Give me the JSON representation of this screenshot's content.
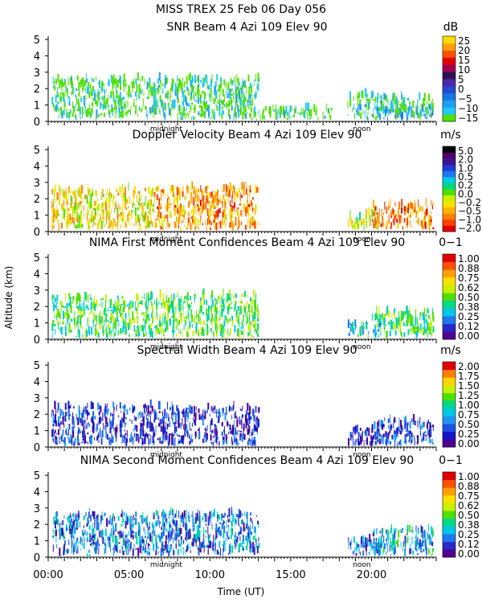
{
  "figure": {
    "title_line1": "MISS TREX  25 Feb 06 Day 056",
    "ylabel": "Altitude (km)",
    "xlabel": "Time (UT)",
    "x_ticks": [
      {
        "value": 0,
        "label": "00:00"
      },
      {
        "value": 5,
        "label": "05:00"
      },
      {
        "value": 10,
        "label": "10:00"
      },
      {
        "value": 15,
        "label": "15:00"
      },
      {
        "value": 20,
        "label": "20:00"
      }
    ],
    "marker_labels": {
      "midnight": "midnight",
      "noon": "noon"
    },
    "y_ticks": [
      0,
      1,
      2,
      3,
      4,
      5
    ]
  },
  "chart_data": [
    {
      "type": "heatmap",
      "title": "SNR Beam 4 Azi 109 Elev 90",
      "unit": "dB",
      "xlim": [
        0,
        24
      ],
      "ylim": [
        0,
        5.2
      ],
      "colorbar_ticks": [
        "25",
        "20",
        "15",
        "10",
        "5",
        "0",
        "−5",
        "−10",
        "−15"
      ],
      "colormap": [
        "#50e000",
        "#22c8ff",
        "#1ea0f0",
        "#1478dc",
        "#2846d2",
        "#4a2aa8",
        "#301050",
        "#a00050",
        "#e00000",
        "#ff5000",
        "#ffa000",
        "#ffdc00"
      ],
      "regions": [
        {
          "x": [
            0.2,
            6.5
          ],
          "y": [
            0.05,
            2.5
          ],
          "level": 0.03
        },
        {
          "x": [
            6.5,
            13.0
          ],
          "y": [
            0.05,
            2.5
          ],
          "level": 0.05
        },
        {
          "x": [
            12.5,
            17.5
          ],
          "y": [
            0.05,
            0.7
          ],
          "level": 0.02
        },
        {
          "x": [
            18.5,
            20.5
          ],
          "y": [
            0.05,
            1.6
          ],
          "level": 0.05
        },
        {
          "x": [
            20.0,
            23.8
          ],
          "y": [
            0.05,
            0.8
          ],
          "level": 0.18
        },
        {
          "x": [
            20.5,
            23.8
          ],
          "y": [
            0.3,
            1.4
          ],
          "level": 0.08
        }
      ]
    },
    {
      "type": "heatmap",
      "title": "Doppler Velocity Beam 4 Azi 109 Elev 90",
      "unit": "m/s",
      "xlim": [
        0,
        24
      ],
      "ylim": [
        0,
        5.2
      ],
      "colorbar_ticks": [
        "5.0",
        "2.0",
        "1.0",
        "0.5",
        "0.2",
        "0.0",
        "−0.2",
        "−0.5",
        "−1.0",
        "−2.0"
      ],
      "colormap": [
        "#e00000",
        "#ff4000",
        "#ff8000",
        "#ffb400",
        "#ffe000",
        "#c8f000",
        "#50e000",
        "#00d880",
        "#00c8e6",
        "#1e78f0",
        "#1e3cd2",
        "#3c1490",
        "#500070",
        "#000000"
      ],
      "regions": [
        {
          "x": [
            0.2,
            6.5
          ],
          "y": [
            0.05,
            2.5
          ],
          "level": 0.32
        },
        {
          "x": [
            6.5,
            13.0
          ],
          "y": [
            0.05,
            2.6
          ],
          "level": 0.22
        },
        {
          "x": [
            18.5,
            20.5
          ],
          "y": [
            0.05,
            1.0
          ],
          "level": 0.35
        },
        {
          "x": [
            20.0,
            23.8
          ],
          "y": [
            0.05,
            1.6
          ],
          "level": 0.18
        }
      ]
    },
    {
      "type": "heatmap",
      "title": "NIMA First Moment Confidences Beam 4 Azi 109 Elev 90",
      "unit": "0−1",
      "xlim": [
        0,
        24
      ],
      "ylim": [
        0,
        5.2
      ],
      "colorbar_ticks": [
        "1.00",
        "0.88",
        "0.75",
        "0.62",
        "0.50",
        "0.38",
        "0.25",
        "0.12",
        "0.00"
      ],
      "colormap": [
        "#500090",
        "#2828c8",
        "#1e78f0",
        "#00c8e6",
        "#00d88c",
        "#50e000",
        "#c8f000",
        "#ffe000",
        "#ffa000",
        "#ff5000",
        "#e00000"
      ],
      "regions": [
        {
          "x": [
            0.2,
            6.5
          ],
          "y": [
            0.05,
            2.5
          ],
          "level": 0.45
        },
        {
          "x": [
            6.5,
            13.0
          ],
          "y": [
            0.05,
            2.6
          ],
          "level": 0.48
        },
        {
          "x": [
            18.5,
            20.5
          ],
          "y": [
            0.05,
            1.0
          ],
          "level": 0.3
        },
        {
          "x": [
            20.0,
            23.8
          ],
          "y": [
            0.05,
            1.6
          ],
          "level": 0.45
        }
      ]
    },
    {
      "type": "heatmap",
      "title": "Spectral Width Beam 4 Azi 109 Elev 90",
      "unit": "m/s",
      "xlim": [
        0,
        24
      ],
      "ylim": [
        0,
        5.2
      ],
      "colorbar_ticks": [
        "2.00",
        "1.75",
        "1.50",
        "1.25",
        "1.00",
        "0.75",
        "0.50",
        "0.25",
        "0.00"
      ],
      "colormap": [
        "#500090",
        "#1414c8",
        "#1e50e6",
        "#1e96f0",
        "#00c8e6",
        "#00d88c",
        "#50e000",
        "#c8f000",
        "#ffd200",
        "#ff8000",
        "#e00000"
      ],
      "regions": [
        {
          "x": [
            0.2,
            6.5
          ],
          "y": [
            0.05,
            2.4
          ],
          "level": 0.18
        },
        {
          "x": [
            6.5,
            13.0
          ],
          "y": [
            0.05,
            2.3
          ],
          "level": 0.16
        },
        {
          "x": [
            18.5,
            20.5
          ],
          "y": [
            0.05,
            1.0
          ],
          "level": 0.12
        },
        {
          "x": [
            20.0,
            23.8
          ],
          "y": [
            0.05,
            1.6
          ],
          "level": 0.2
        }
      ]
    },
    {
      "type": "heatmap",
      "title": "NIMA Second Moment Confidences Beam 4 Azi 109 Elev 90",
      "unit": "0−1",
      "xlim": [
        0,
        24
      ],
      "ylim": [
        0,
        5.2
      ],
      "colorbar_ticks": [
        "1.00",
        "0.88",
        "0.75",
        "0.62",
        "0.50",
        "0.38",
        "0.25",
        "0.12",
        "0.00"
      ],
      "colormap": [
        "#500090",
        "#2828c8",
        "#1e78f0",
        "#00c8e6",
        "#00d88c",
        "#50e000",
        "#c8f000",
        "#ffe000",
        "#ffa000",
        "#ff5000",
        "#e00000"
      ],
      "regions": [
        {
          "x": [
            0.2,
            6.5
          ],
          "y": [
            0.05,
            2.5
          ],
          "level": 0.22
        },
        {
          "x": [
            6.5,
            13.0
          ],
          "y": [
            0.05,
            2.6
          ],
          "level": 0.22
        },
        {
          "x": [
            18.5,
            20.5
          ],
          "y": [
            0.05,
            1.0
          ],
          "level": 0.2
        },
        {
          "x": [
            20.0,
            23.8
          ],
          "y": [
            0.05,
            1.6
          ],
          "level": 0.3
        }
      ]
    }
  ]
}
